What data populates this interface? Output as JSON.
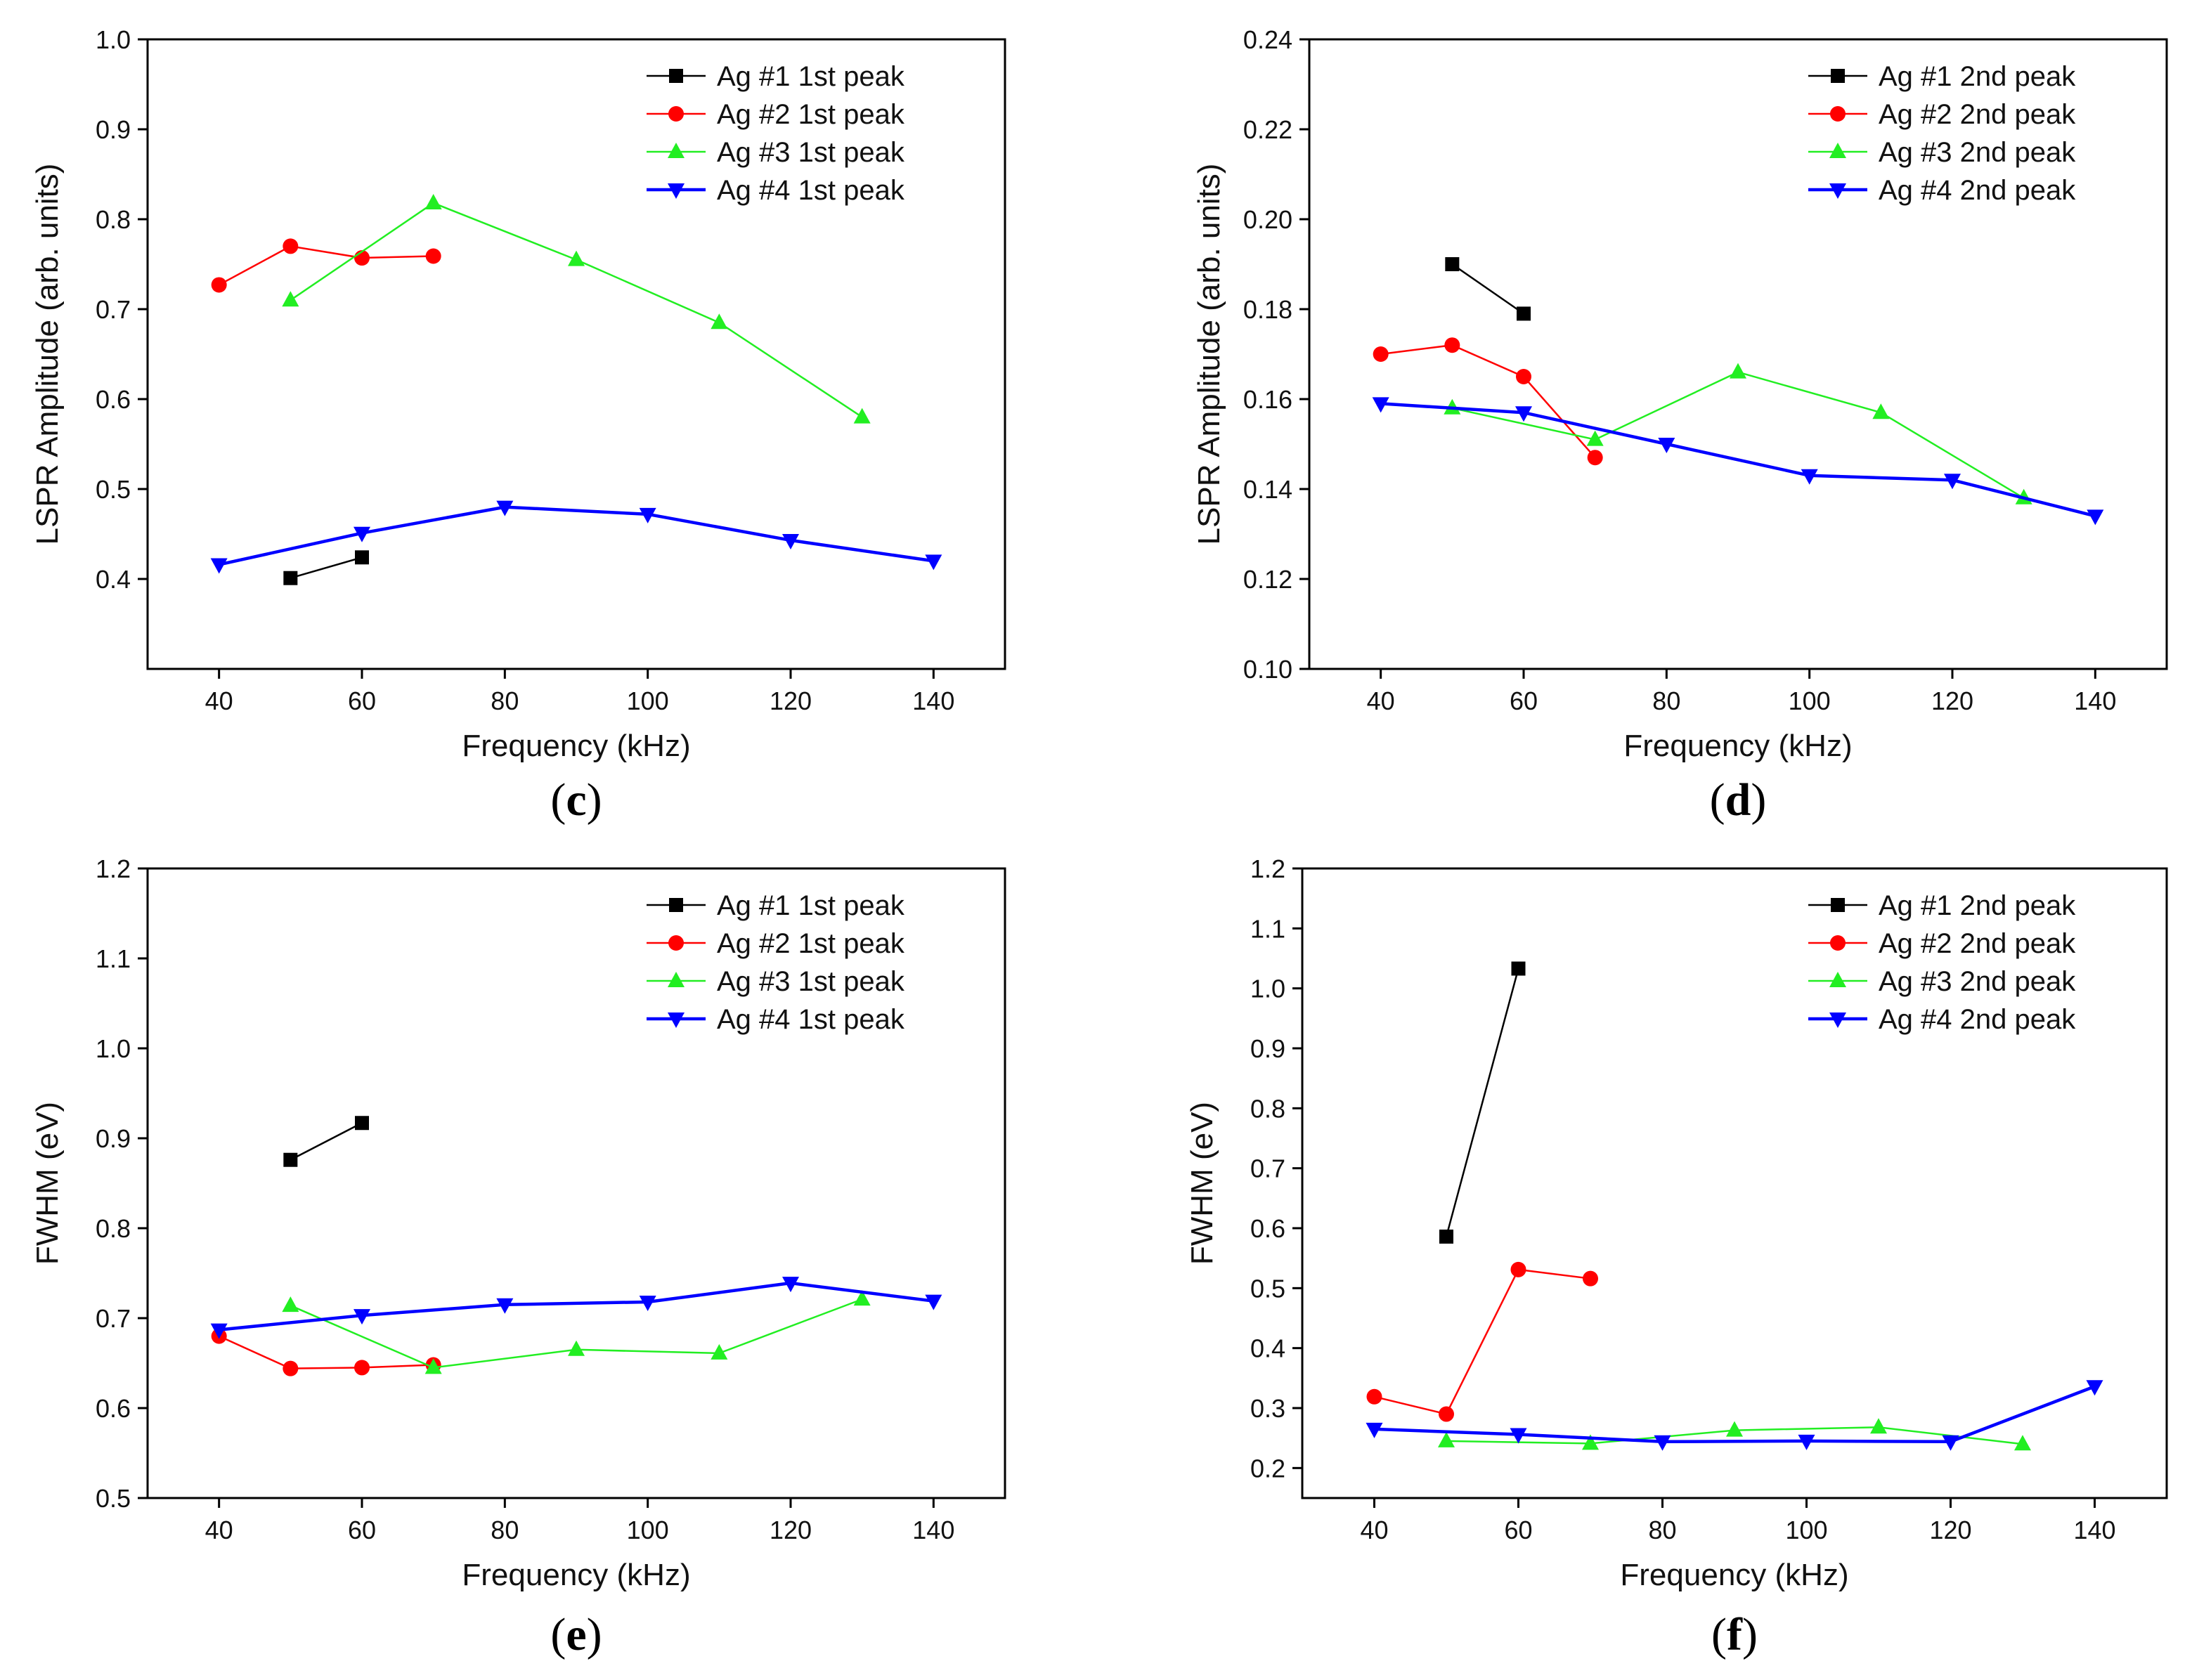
{
  "figure": {
    "panels": [
      "(c)",
      "(d)",
      "(e)",
      "(f)"
    ]
  },
  "colors": {
    "Ag #1": "#000000",
    "Ag #2": "#ff0000",
    "Ag #3": "#22ee22",
    "Ag #4": "#0000ff"
  },
  "markers": {
    "Ag #1": "square",
    "Ag #2": "circle",
    "Ag #3": "triangle-up",
    "Ag #4": "triangle-down"
  },
  "chart_data": [
    {
      "panel": "c",
      "panel_label": "c",
      "type": "line",
      "xlabel": "Frequency (kHz)",
      "ylabel": "LSPR Amplitude (arb. units)",
      "xlim": [
        30,
        150
      ],
      "ylim": [
        0.3,
        1.0
      ],
      "xticks": [
        40,
        60,
        80,
        100,
        120,
        140
      ],
      "yticks": [
        0.4,
        0.5,
        0.6,
        0.7,
        0.8,
        0.9,
        1.0
      ],
      "ytick_labels": [
        "0.4",
        "0.5",
        "0.6",
        "0.7",
        "0.8",
        "0.9",
        "1.0"
      ],
      "legend_position": "top-right",
      "series": [
        {
          "key": "Ag #1",
          "name": "Ag #1 1st peak",
          "x": [
            50,
            60
          ],
          "y": [
            0.401,
            0.424
          ]
        },
        {
          "key": "Ag #2",
          "name": "Ag #2 1st peak",
          "x": [
            40,
            50,
            60,
            70
          ],
          "y": [
            0.727,
            0.77,
            0.757,
            0.759
          ]
        },
        {
          "key": "Ag #3",
          "name": "Ag #3 1st peak",
          "x": [
            50,
            70,
            90,
            110,
            130
          ],
          "y": [
            0.71,
            0.818,
            0.755,
            0.685,
            0.58
          ]
        },
        {
          "key": "Ag #4",
          "name": "Ag #4 1st peak",
          "x": [
            40,
            60,
            80,
            100,
            120,
            140
          ],
          "y": [
            0.416,
            0.451,
            0.48,
            0.472,
            0.443,
            0.42
          ]
        }
      ]
    },
    {
      "panel": "d",
      "panel_label": "d",
      "type": "line",
      "xlabel": "Frequency (kHz)",
      "ylabel": "LSPR Amplitude (arb. units)",
      "xlim": [
        30,
        150
      ],
      "ylim": [
        0.1,
        0.24
      ],
      "xticks": [
        40,
        60,
        80,
        100,
        120,
        140
      ],
      "yticks": [
        0.1,
        0.12,
        0.14,
        0.16,
        0.18,
        0.2,
        0.22,
        0.24
      ],
      "ytick_labels": [
        "0.10",
        "0.12",
        "0.14",
        "0.16",
        "0.18",
        "0.20",
        "0.22",
        "0.24"
      ],
      "legend_position": "top-right",
      "series": [
        {
          "key": "Ag #1",
          "name": "Ag #1 2nd peak",
          "x": [
            50,
            60
          ],
          "y": [
            0.19,
            0.179
          ]
        },
        {
          "key": "Ag #2",
          "name": "Ag #2 2nd peak",
          "x": [
            40,
            50,
            60,
            70
          ],
          "y": [
            0.17,
            0.172,
            0.165,
            0.147
          ]
        },
        {
          "key": "Ag #3",
          "name": "Ag #3 2nd peak",
          "x": [
            50,
            70,
            90,
            110,
            130
          ],
          "y": [
            0.158,
            0.151,
            0.166,
            0.157,
            0.138
          ]
        },
        {
          "key": "Ag #4",
          "name": "Ag #4 2nd peak",
          "x": [
            40,
            60,
            80,
            100,
            120,
            140
          ],
          "y": [
            0.159,
            0.157,
            0.15,
            0.143,
            0.142,
            0.134
          ]
        }
      ]
    },
    {
      "panel": "e",
      "panel_label": "e",
      "type": "line",
      "xlabel": "Frequency (kHz)",
      "ylabel": "FWHM (eV)",
      "xlim": [
        30,
        150
      ],
      "ylim": [
        0.5,
        1.2
      ],
      "xticks": [
        40,
        60,
        80,
        100,
        120,
        140
      ],
      "yticks": [
        0.5,
        0.6,
        0.7,
        0.8,
        0.9,
        1.0,
        1.1,
        1.2
      ],
      "ytick_labels": [
        "0.5",
        "0.6",
        "0.7",
        "0.8",
        "0.9",
        "1.0",
        "1.1",
        "1.2"
      ],
      "legend_position": "top-right",
      "series": [
        {
          "key": "Ag #1",
          "name": "Ag #1 1st peak",
          "x": [
            50,
            60
          ],
          "y": [
            0.876,
            0.917
          ]
        },
        {
          "key": "Ag #2",
          "name": "Ag #2 1st peak",
          "x": [
            40,
            50,
            60,
            70
          ],
          "y": [
            0.68,
            0.644,
            0.645,
            0.648
          ]
        },
        {
          "key": "Ag #3",
          "name": "Ag #3 1st peak",
          "x": [
            50,
            70,
            90,
            110,
            130
          ],
          "y": [
            0.714,
            0.645,
            0.665,
            0.661,
            0.721
          ]
        },
        {
          "key": "Ag #4",
          "name": "Ag #4 1st peak",
          "x": [
            40,
            60,
            80,
            100,
            120,
            140
          ],
          "y": [
            0.687,
            0.703,
            0.715,
            0.718,
            0.739,
            0.719
          ]
        }
      ]
    },
    {
      "panel": "f",
      "panel_label": "f",
      "type": "line",
      "xlabel": "Frequency (kHz)",
      "ylabel": "FWHM (eV)",
      "xlim": [
        30,
        150
      ],
      "ylim": [
        0.15,
        1.2
      ],
      "xticks": [
        40,
        60,
        80,
        100,
        120,
        140
      ],
      "yticks": [
        0.2,
        0.3,
        0.4,
        0.5,
        0.6,
        0.7,
        0.8,
        0.9,
        1.0,
        1.1,
        1.2
      ],
      "ytick_labels": [
        "0.2",
        "0.3",
        "0.4",
        "0.5",
        "0.6",
        "0.7",
        "0.8",
        "0.9",
        "1.0",
        "1.1",
        "1.2"
      ],
      "legend_position": "top-right",
      "series": [
        {
          "key": "Ag #1",
          "name": "Ag #1 2nd peak",
          "x": [
            50,
            60
          ],
          "y": [
            0.586,
            1.033
          ]
        },
        {
          "key": "Ag #2",
          "name": "Ag #2 2nd peak",
          "x": [
            40,
            50,
            60,
            70
          ],
          "y": [
            0.319,
            0.29,
            0.531,
            0.516
          ]
        },
        {
          "key": "Ag #3",
          "name": "Ag #3 2nd peak",
          "x": [
            50,
            70,
            90,
            110,
            130
          ],
          "y": [
            0.245,
            0.241,
            0.263,
            0.268,
            0.24
          ]
        },
        {
          "key": "Ag #4",
          "name": "Ag #4 2nd peak",
          "x": [
            40,
            60,
            80,
            100,
            120,
            140
          ],
          "y": [
            0.265,
            0.256,
            0.244,
            0.245,
            0.244,
            0.336
          ]
        }
      ]
    }
  ]
}
